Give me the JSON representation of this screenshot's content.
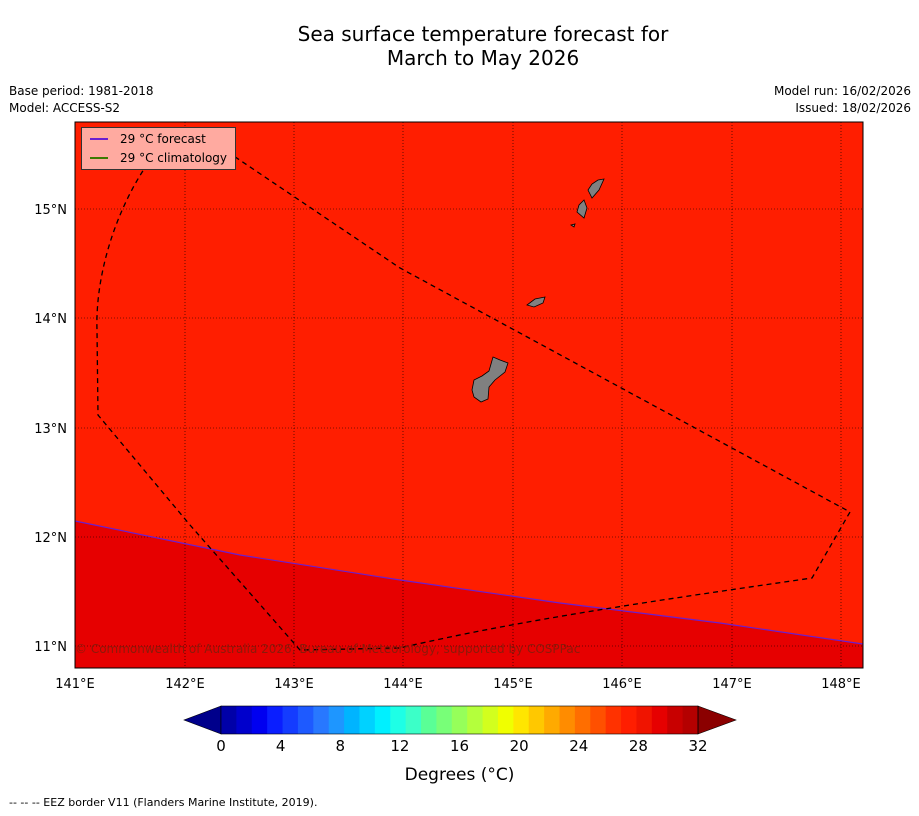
{
  "title": {
    "line1": "Sea surface temperature forecast for",
    "line2": "March to May 2026"
  },
  "meta": {
    "base_period": "Base period: 1981-2018",
    "model": "Model: ACCESS-S2",
    "model_run": "Model run: 16/02/2026",
    "issued": "Issued: 18/02/2026"
  },
  "map": {
    "lat_labels": [
      "15°N",
      "14°N",
      "13°N",
      "12°N",
      "11°N"
    ],
    "lon_labels": [
      "141°E",
      "142°E",
      "143°E",
      "144°E",
      "145°E",
      "146°E",
      "147°E",
      "148°E"
    ],
    "copyright": "© Commonwealth of Australia 2026, Bureau of Meteorology, supported by COSPPac",
    "colors": {
      "warm_region": "#ff1e00",
      "hot_region": "#e60000",
      "land": "#808080",
      "forecast_line": "#6a1fd0",
      "climatology_line": "#3d7a00"
    }
  },
  "legend": {
    "forecast_label": "29 °C  forecast",
    "climatology_label": "29 °C  climatology"
  },
  "colorbar": {
    "tick_labels": [
      "0",
      "4",
      "8",
      "12",
      "16",
      "20",
      "24",
      "28",
      "32"
    ],
    "label": "Degrees (°C)",
    "under_color": "#00008b",
    "over_color": "#8b0000",
    "colors": [
      "#0000a8",
      "#0000cc",
      "#0000f0",
      "#0a1eff",
      "#143cff",
      "#1e5aff",
      "#2878ff",
      "#1e96ff",
      "#00b4ff",
      "#00d2ff",
      "#00f0ff",
      "#1effe6",
      "#3cffc8",
      "#5aff96",
      "#78ff78",
      "#96ff5a",
      "#b4ff3c",
      "#d2ff1e",
      "#f0ff00",
      "#ffe600",
      "#ffc800",
      "#ffaa00",
      "#ff8c00",
      "#ff6e00",
      "#ff5000",
      "#ff3200",
      "#ff1e00",
      "#f01400",
      "#e60000",
      "#c80000",
      "#b40000"
    ]
  },
  "footer": "-- -- -- EEZ border V11 (Flanders Marine Institute, 2019)."
}
